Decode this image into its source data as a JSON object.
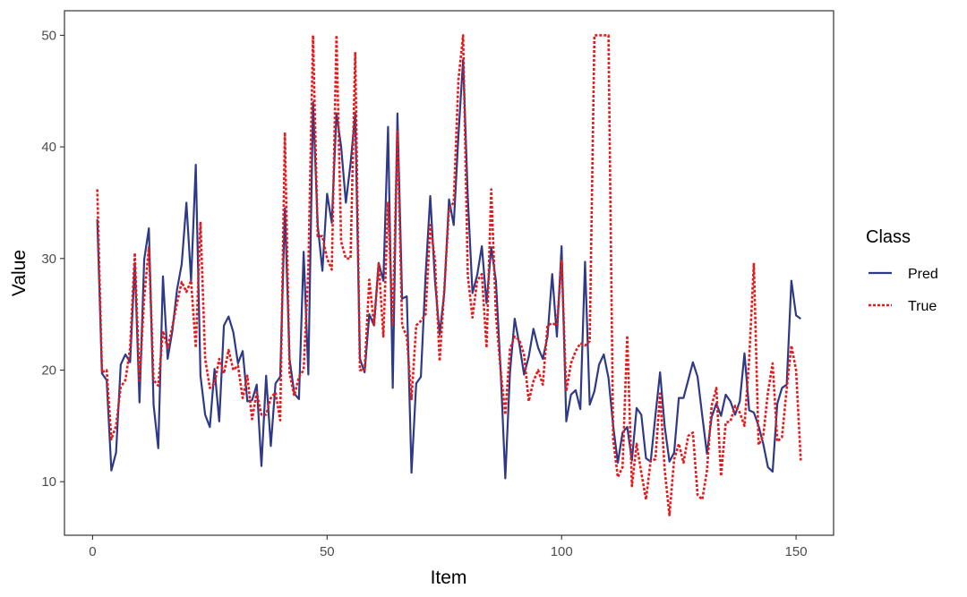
{
  "chart_data": {
    "type": "line",
    "xlabel": "Item",
    "ylabel": "Value",
    "xlim": [
      -6,
      158
    ],
    "ylim": [
      5.2,
      52.2
    ],
    "x_ticks": [
      0,
      50,
      100,
      150
    ],
    "y_ticks": [
      10,
      20,
      30,
      40,
      50
    ],
    "x_tick_labels": [
      "0",
      "50",
      "100",
      "150"
    ],
    "y_tick_labels": [
      "10",
      "20",
      "30",
      "40",
      "50"
    ],
    "grid": false,
    "legend": {
      "title": "Class",
      "position": "right"
    },
    "x": [
      1,
      2,
      3,
      4,
      5,
      6,
      7,
      8,
      9,
      10,
      11,
      12,
      13,
      14,
      15,
      16,
      17,
      18,
      19,
      20,
      21,
      22,
      23,
      24,
      25,
      26,
      27,
      28,
      29,
      30,
      31,
      32,
      33,
      34,
      35,
      36,
      37,
      38,
      39,
      40,
      41,
      42,
      43,
      44,
      45,
      46,
      47,
      48,
      49,
      50,
      51,
      52,
      53,
      54,
      55,
      56,
      57,
      58,
      59,
      60,
      61,
      62,
      63,
      64,
      65,
      66,
      67,
      68,
      69,
      70,
      71,
      72,
      73,
      74,
      75,
      76,
      77,
      78,
      79,
      80,
      81,
      82,
      83,
      84,
      85,
      86,
      87,
      88,
      89,
      90,
      91,
      92,
      93,
      94,
      95,
      96,
      97,
      98,
      99,
      100,
      101,
      102,
      103,
      104,
      105,
      106,
      107,
      108,
      109,
      110,
      111,
      112,
      113,
      114,
      115,
      116,
      117,
      118,
      119,
      120,
      121,
      122,
      123,
      124,
      125,
      126,
      127,
      128,
      129,
      130,
      131,
      132,
      133,
      134,
      135,
      136,
      137,
      138,
      139,
      140,
      141,
      142,
      143,
      144,
      145,
      146,
      147,
      148,
      149,
      150,
      151
    ],
    "series": [
      {
        "name": "Pred",
        "color": "#2e3a87",
        "dash": "solid",
        "values": [
          33.5,
          19.7,
          19.1,
          11.0,
          12.6,
          20.5,
          21.4,
          20.7,
          29.6,
          17.1,
          29.9,
          32.7,
          16.9,
          13.0,
          28.4,
          21.0,
          23.5,
          27.2,
          29.5,
          35.0,
          28.0,
          38.4,
          19.5,
          16.0,
          14.9,
          20.1,
          15.4,
          24.0,
          24.8,
          23.4,
          20.6,
          21.7,
          17.2,
          17.3,
          18.7,
          11.4,
          19.5,
          13.2,
          18.8,
          19.4,
          34.5,
          21.0,
          17.9,
          17.4,
          30.6,
          19.6,
          44.0,
          33.0,
          28.9,
          35.8,
          33.2,
          43.0,
          40.0,
          35.0,
          38.5,
          43.0,
          21.0,
          19.8,
          25.0,
          24.0,
          29.6,
          28.0,
          41.8,
          18.4,
          43.0,
          26.4,
          26.6,
          10.8,
          18.8,
          19.4,
          28.5,
          35.6,
          28.0,
          23.2,
          27.0,
          35.3,
          33.0,
          41.0,
          47.8,
          35.5,
          26.9,
          28.5,
          31.1,
          26.0,
          31.0,
          28.0,
          20.0,
          10.3,
          19.8,
          24.6,
          22.3,
          19.6,
          21.2,
          23.7,
          22.0,
          21.0,
          23.0,
          28.6,
          23.0,
          31.1,
          15.4,
          17.8,
          18.2,
          16.5,
          29.7,
          16.9,
          18.1,
          20.5,
          21.4,
          19.3,
          15.0,
          11.7,
          14.4,
          14.9,
          11.9,
          16.6,
          16.0,
          12.1,
          11.8,
          15.9,
          19.8,
          14.9,
          11.8,
          12.6,
          17.5,
          17.5,
          19.1,
          20.7,
          19.4,
          15.9,
          12.5,
          15.8,
          17.0,
          15.9,
          17.8,
          17.2,
          16.0,
          17.2,
          21.5,
          16.4,
          16.2,
          15.0,
          13.4,
          11.3,
          10.9,
          17.0,
          18.4,
          18.7,
          28.0,
          24.9,
          24.6
        ]
      },
      {
        "name": "True",
        "color": "#e41a1c",
        "dash": "dotted",
        "values": [
          36.2,
          19.8,
          20.0,
          13.8,
          15.0,
          18.5,
          19.1,
          22.0,
          30.5,
          18.9,
          26.5,
          31.0,
          19.1,
          18.6,
          23.5,
          22.0,
          23.9,
          26.0,
          27.9,
          27.0,
          28.0,
          22.0,
          33.3,
          21.0,
          18.4,
          18.8,
          21.0,
          19.7,
          21.8,
          20.0,
          20.4,
          17.5,
          19.5,
          15.6,
          18.0,
          16.0,
          16.0,
          17.5,
          18.0,
          15.5,
          41.3,
          19.7,
          17.7,
          19.4,
          20.0,
          29.0,
          50.0,
          32.0,
          32.0,
          30.0,
          29.0,
          50.0,
          31.5,
          30.0,
          30.0,
          48.5,
          20.0,
          20.0,
          28.1,
          24.0,
          29.6,
          23.0,
          35.0,
          24.1,
          41.4,
          24.0,
          23.0,
          17.4,
          24.0,
          24.4,
          25.0,
          33.0,
          29.9,
          20.8,
          27.3,
          34.5,
          35.0,
          46.0,
          50.0,
          28.5,
          24.7,
          28.0,
          28.6,
          22.0,
          36.2,
          25.0,
          20.0,
          16.0,
          21.9,
          23.0,
          22.7,
          21.4,
          17.2,
          19.0,
          20.0,
          18.7,
          24.0,
          24.2,
          24.0,
          29.8,
          18.1,
          20.6,
          21.7,
          22.4,
          22.2,
          22.6,
          50.0,
          50.0,
          50.0,
          50.0,
          13.8,
          10.4,
          11.3,
          23.1,
          9.6,
          13.4,
          10.8,
          8.4,
          11.9,
          12.0,
          17.9,
          11.0,
          7.0,
          12.0,
          13.4,
          11.7,
          14.1,
          14.4,
          8.8,
          8.4,
          11.0,
          16.8,
          18.4,
          10.5,
          15.3,
          15.4,
          16.8,
          16.2,
          15.0,
          21.0,
          29.6,
          13.3,
          14.1,
          18.0,
          20.6,
          13.6,
          14.0,
          18.3,
          22.2,
          20.0,
          11.9
        ]
      }
    ]
  }
}
